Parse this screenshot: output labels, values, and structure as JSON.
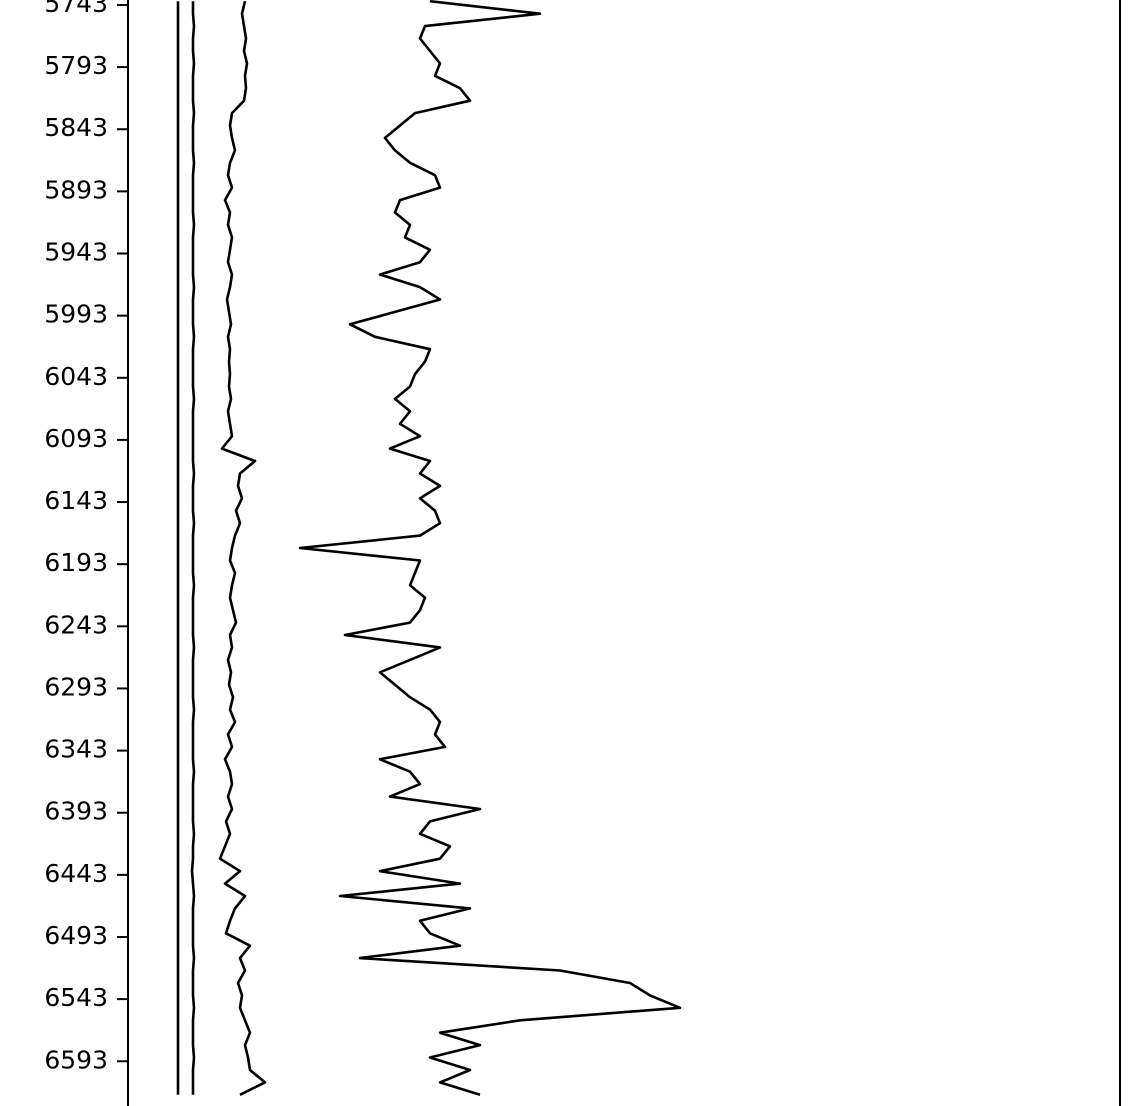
{
  "chart_data": {
    "type": "line",
    "orientation": "vertical",
    "y": [
      5740,
      5750,
      5760,
      5770,
      5780,
      5790,
      5800,
      5810,
      5820,
      5830,
      5840,
      5850,
      5860,
      5870,
      5880,
      5890,
      5900,
      5910,
      5920,
      5930,
      5940,
      5950,
      5960,
      5970,
      5980,
      5990,
      6000,
      6010,
      6020,
      6030,
      6040,
      6050,
      6060,
      6070,
      6080,
      6090,
      6100,
      6110,
      6120,
      6130,
      6140,
      6150,
      6160,
      6170,
      6180,
      6190,
      6200,
      6210,
      6220,
      6230,
      6240,
      6250,
      6260,
      6270,
      6280,
      6290,
      6300,
      6310,
      6320,
      6330,
      6340,
      6350,
      6360,
      6370,
      6380,
      6390,
      6400,
      6410,
      6420,
      6430,
      6440,
      6450,
      6460,
      6470,
      6480,
      6490,
      6500,
      6510,
      6520,
      6530,
      6540,
      6550,
      6560,
      6570,
      6580,
      6590,
      6600,
      6610,
      6620
    ],
    "ylim": [
      5739,
      6629
    ],
    "y_inverted": true,
    "yticks": [
      5743,
      5793,
      5843,
      5893,
      5943,
      5993,
      6043,
      6093,
      6143,
      6193,
      6243,
      6293,
      6343,
      6393,
      6443,
      6493,
      6543,
      6593
    ],
    "xlim": [
      0,
      992
    ],
    "series": [
      {
        "color": "#000000",
        "values": [
          50,
          50,
          50,
          50,
          50,
          50,
          50,
          50,
          50,
          50,
          50,
          50,
          50,
          50,
          50,
          50,
          50,
          50,
          50,
          50,
          50,
          50,
          50,
          50,
          50,
          50,
          50,
          50,
          50,
          50,
          50,
          50,
          50,
          50,
          50,
          50,
          50,
          50,
          50,
          50,
          50,
          50,
          50,
          50,
          50,
          50,
          50,
          50,
          50,
          50,
          50,
          50,
          50,
          50,
          50,
          50,
          50,
          50,
          50,
          50,
          50,
          50,
          50,
          50,
          50,
          50,
          50,
          50,
          50,
          50,
          50,
          50,
          50,
          50,
          50,
          50,
          50,
          50,
          50,
          50,
          50,
          50,
          50,
          50,
          50,
          50,
          50,
          50,
          50
        ]
      },
      {
        "color": "#000000",
        "values": [
          65,
          65,
          66,
          65,
          65,
          66,
          65,
          65,
          65,
          66,
          65,
          65,
          65,
          66,
          65,
          65,
          65,
          65,
          66,
          65,
          65,
          65,
          65,
          66,
          65,
          65,
          65,
          66,
          65,
          65,
          65,
          65,
          66,
          65,
          65,
          65,
          65,
          65,
          66,
          65,
          65,
          65,
          66,
          65,
          65,
          65,
          65,
          66,
          65,
          65,
          65,
          65,
          66,
          65,
          65,
          65,
          65,
          66,
          65,
          65,
          65,
          65,
          66,
          65,
          65,
          65,
          65,
          66,
          65,
          65,
          64,
          65,
          66,
          65,
          65,
          65,
          65,
          66,
          65,
          65,
          65,
          66,
          65,
          65,
          65,
          66,
          65,
          65,
          65
        ]
      },
      {
        "color": "#000000",
        "values": [
          117,
          114,
          116,
          118,
          116,
          119,
          117,
          118,
          116,
          104,
          102,
          104,
          107,
          102,
          100,
          104,
          97,
          102,
          100,
          104,
          102,
          100,
          104,
          102,
          99,
          101,
          103,
          100,
          102,
          101,
          102,
          101,
          103,
          100,
          102,
          104,
          94,
          127,
          112,
          110,
          114,
          108,
          112,
          107,
          104,
          102,
          107,
          104,
          102,
          105,
          108,
          102,
          104,
          100,
          103,
          101,
          105,
          102,
          107,
          100,
          104,
          97,
          102,
          104,
          100,
          104,
          98,
          102,
          97,
          92,
          112,
          97,
          117,
          107,
          102,
          98,
          122,
          112,
          117,
          110,
          114,
          112,
          117,
          122,
          117,
          120,
          122,
          137,
          112
        ]
      },
      {
        "color": "#000000",
        "values": [
          302,
          412,
          297,
          292,
          302,
          312,
          307,
          332,
          342,
          287,
          272,
          257,
          267,
          282,
          307,
          312,
          272,
          267,
          282,
          277,
          302,
          292,
          252,
          292,
          312,
          267,
          222,
          247,
          302,
          297,
          287,
          282,
          267,
          282,
          272,
          292,
          262,
          302,
          292,
          312,
          292,
          307,
          312,
          292,
          172,
          292,
          287,
          282,
          297,
          292,
          282,
          217,
          312,
          282,
          252,
          267,
          282,
          302,
          312,
          307,
          317,
          252,
          282,
          292,
          262,
          352,
          302,
          292,
          322,
          312,
          252,
          332,
          212,
          342,
          292,
          302,
          332,
          232,
          432,
          502,
          522,
          552,
          392,
          312,
          352,
          302,
          342,
          312,
          352
        ]
      }
    ]
  }
}
